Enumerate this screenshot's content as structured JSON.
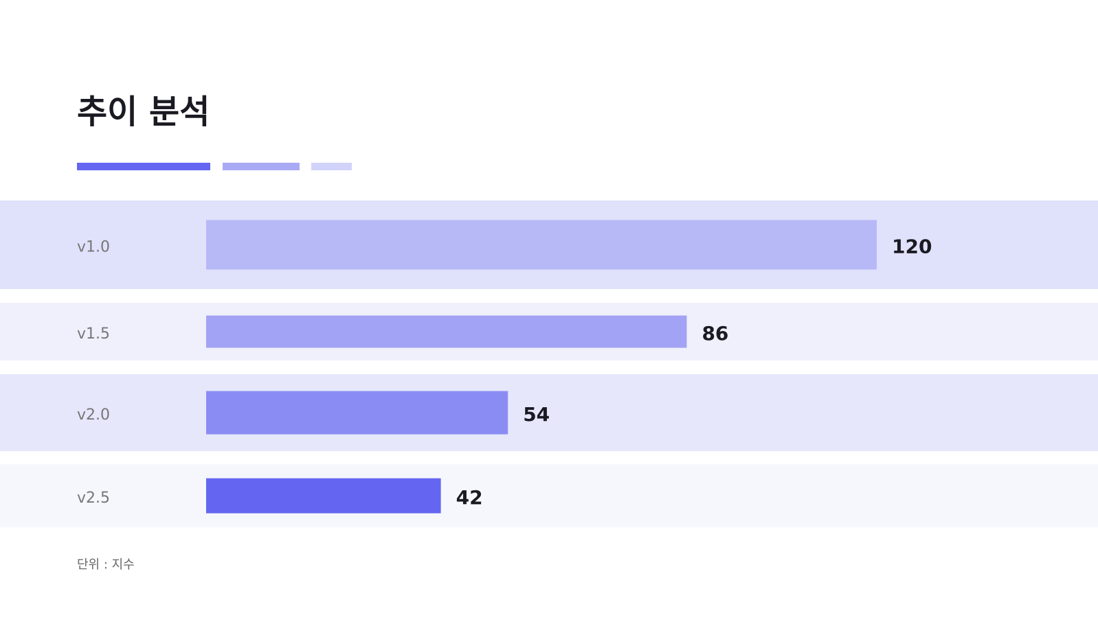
{
  "chart_data": {
    "type": "hbar",
    "title": "추이 분석",
    "categories": [
      "v1.0",
      "v1.5",
      "v2.0",
      "v2.5"
    ],
    "values": [
      120,
      86,
      54,
      42
    ],
    "colors": [
      "#b7b8f6",
      "#a2a3f5",
      "#8b8cf3",
      "#6466f1"
    ],
    "note": "단위 : 지수"
  }
}
